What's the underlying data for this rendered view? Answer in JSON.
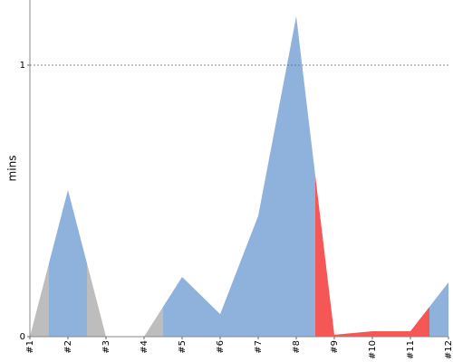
{
  "chart_data": {
    "type": "area",
    "y_label": "mins",
    "categories": [
      "#1",
      "#2",
      "#3",
      "#4",
      "#5",
      "#6",
      "#7",
      "#8",
      "#9",
      "#10",
      "#11",
      "#12"
    ],
    "values": [
      0,
      0.54,
      0,
      0,
      0.22,
      0.083,
      0.445,
      1.18,
      0.007,
      0.02,
      0.02,
      0.2
    ],
    "colors": [
      "#bdbdbd",
      "#8fb2dc",
      "#bdbdbd",
      "#bdbdbd",
      "#8fb2dc",
      "#8fb2dc",
      "#8fb2dc",
      "#8fb2dc",
      "#f55757",
      "#f55757",
      "#f55757",
      "#8fb2dc"
    ],
    "ylim": [
      0,
      1.24
    ],
    "yticks": [
      0,
      1
    ],
    "grid": true
  }
}
